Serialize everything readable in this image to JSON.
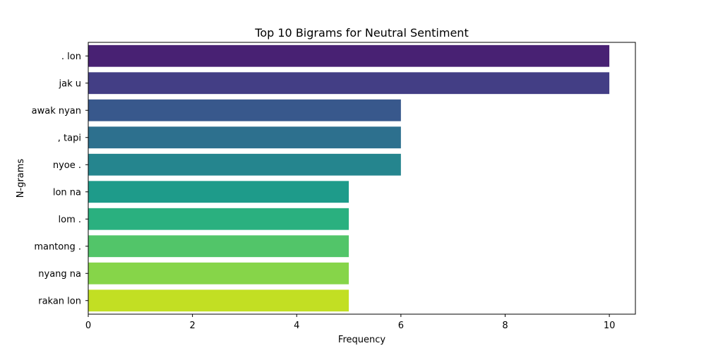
{
  "chart_data": {
    "type": "bar",
    "orientation": "horizontal",
    "title": "Top 10 Bigrams for Neutral Sentiment",
    "xlabel": "Frequency",
    "ylabel": "N-grams",
    "categories": [
      ". lon",
      "jak u",
      "awak nyan",
      ", tapi",
      "nyoe .",
      "lon na",
      "lom .",
      "mantong .",
      "nyang na",
      "rakan lon"
    ],
    "values": [
      10,
      10,
      6,
      6,
      6,
      5,
      5,
      5,
      5,
      5
    ],
    "xlim": [
      0,
      10.5
    ],
    "xticks": [
      0,
      2,
      4,
      6,
      8,
      10
    ],
    "grid": false,
    "colors": [
      "#482173",
      "#433e85",
      "#38588c",
      "#2d708e",
      "#25858e",
      "#1e9b8a",
      "#2ab07f",
      "#52c569",
      "#86d549",
      "#c2df23"
    ]
  }
}
